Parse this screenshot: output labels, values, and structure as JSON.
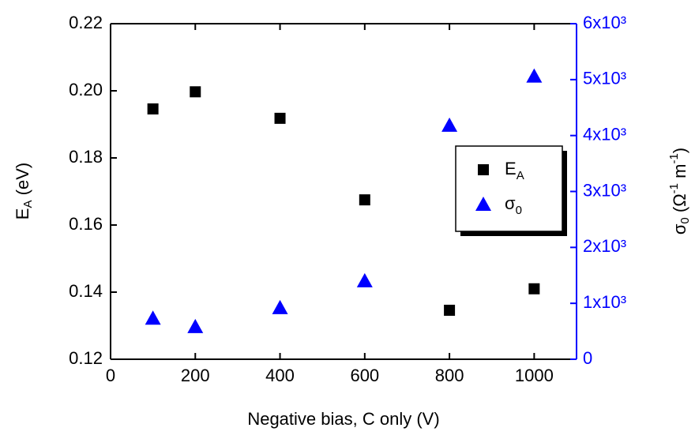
{
  "chart_data": {
    "type": "scatter",
    "xlabel": "Negative bias, C only (V)",
    "ylabel": [
      "E",
      "A",
      " (eV)"
    ],
    "y2label": [
      "σ",
      "0",
      " (Ω",
      "-1",
      " m",
      "-1",
      ")"
    ],
    "xlim": [
      0,
      1100
    ],
    "xticks": [
      0,
      200,
      400,
      600,
      800,
      1000
    ],
    "ylim": [
      0.12,
      0.22
    ],
    "yticks": [
      0.12,
      0.14,
      0.16,
      0.18,
      {
        "value": 0.2,
        "label": "0.20"
      },
      0.22
    ],
    "y2lim": [
      0,
      6000
    ],
    "y2ticks": [
      0,
      {
        "value": 1000,
        "label": "1x10³"
      },
      {
        "value": 2000,
        "label": "2x10³"
      },
      {
        "value": 3000,
        "label": "3x10³"
      },
      {
        "value": 4000,
        "label": "4x10³"
      },
      {
        "value": 5000,
        "label": "5x10³"
      },
      {
        "value": 6000,
        "label": "6x10³"
      }
    ],
    "y2color": "#0000ff",
    "series": [
      {
        "name": [
          "E",
          "A"
        ],
        "color": "#000000",
        "marker": "square",
        "x": [
          100,
          200,
          400,
          600,
          800,
          1000
        ],
        "values": [
          0.1946,
          0.1997,
          0.1918,
          0.1675,
          0.1346,
          0.141
        ]
      },
      {
        "name": [
          "σ",
          "0"
        ],
        "color": "#0000ff",
        "marker": "triangle",
        "axis": "y2",
        "x": [
          100,
          200,
          400,
          600,
          800,
          1000
        ],
        "values": [
          730,
          580,
          920,
          1400,
          4180,
          5060
        ]
      }
    ]
  }
}
